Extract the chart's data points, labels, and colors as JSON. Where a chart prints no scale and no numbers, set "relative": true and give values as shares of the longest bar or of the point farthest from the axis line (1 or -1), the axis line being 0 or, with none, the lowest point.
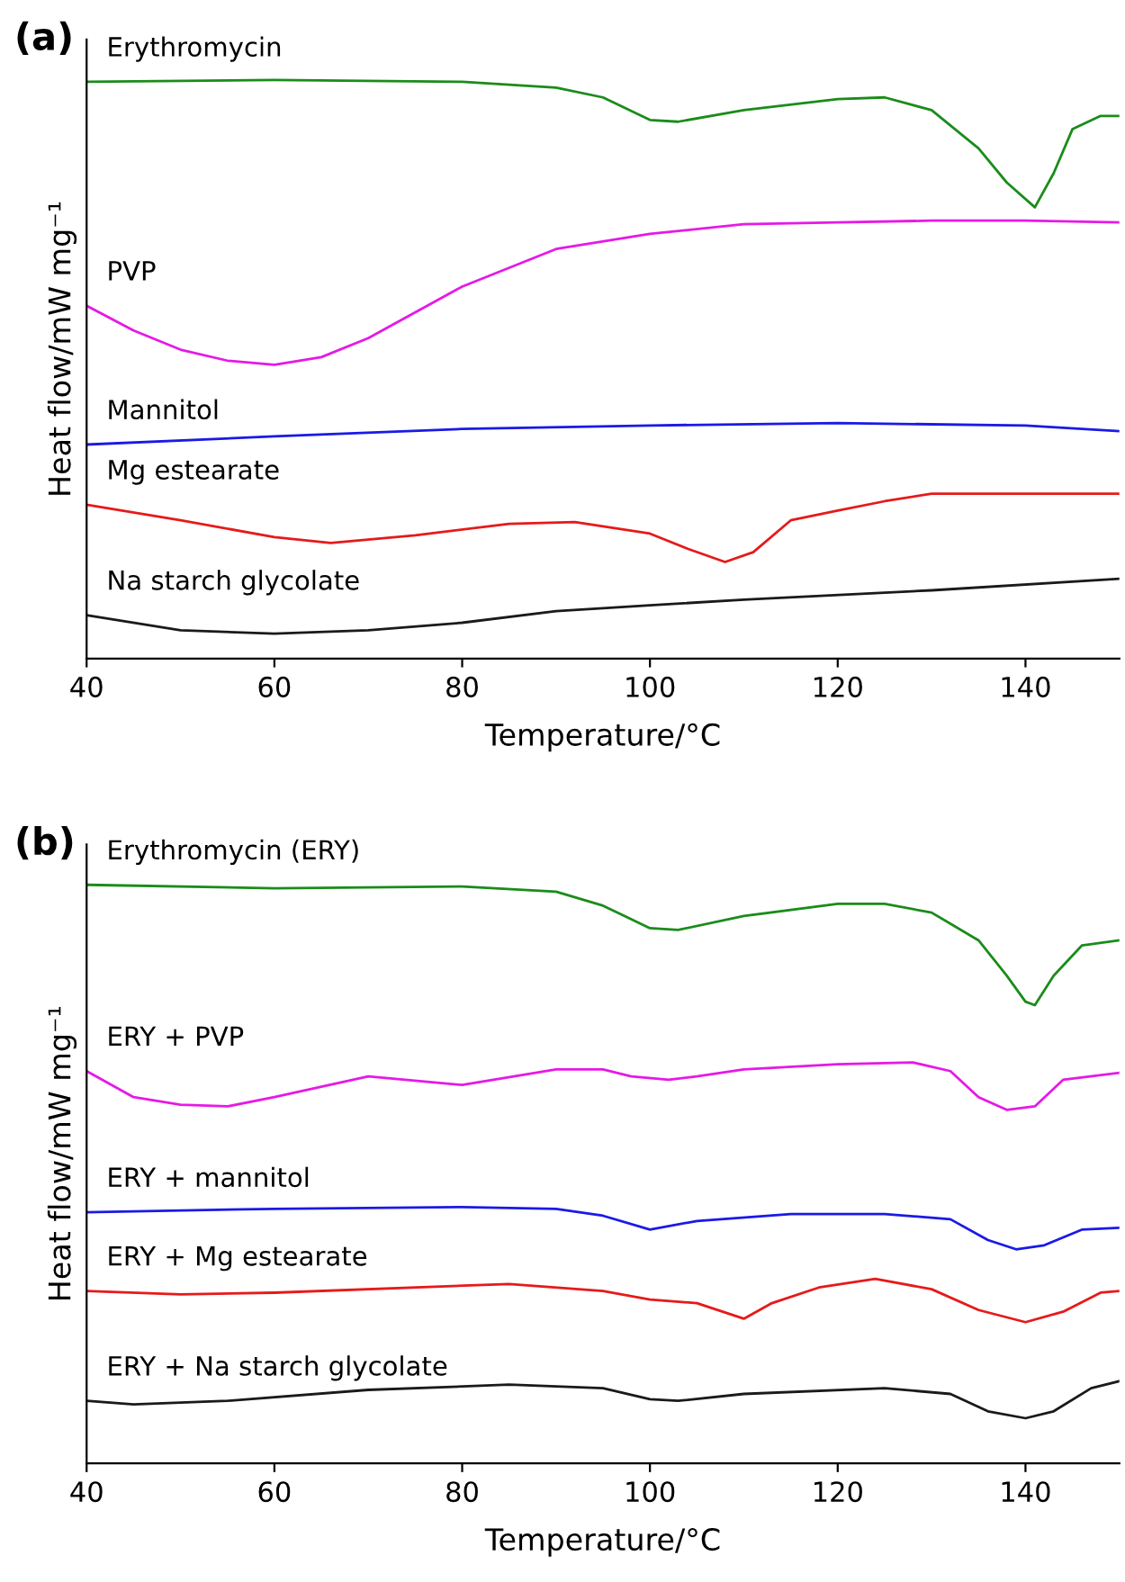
{
  "chart_data": [
    {
      "type": "line",
      "relative": true,
      "xlabel": "Temperature/°C",
      "ylabel": "Heat flow/mW mg⁻¹",
      "xlim": [
        40,
        150
      ],
      "xticks": [
        40,
        60,
        80,
        100,
        120,
        140
      ],
      "tick_labels": "x",
      "grid": false,
      "legend": false,
      "annotations": [
        "(a)"
      ],
      "series": [
        {
          "name": "Erythromycin",
          "color": "#1a8c1a",
          "x": [
            40,
            60,
            80,
            90,
            95,
            100,
            103,
            110,
            120,
            125,
            130,
            135,
            138,
            141,
            143,
            145,
            148,
            150
          ],
          "values": [
            0.997,
            1.0,
            0.997,
            0.987,
            0.97,
            0.931,
            0.928,
            0.948,
            0.967,
            0.97,
            0.948,
            0.882,
            0.823,
            0.78,
            0.839,
            0.915,
            0.938,
            0.938
          ]
        },
        {
          "name": "PVP",
          "color": "#e619e6",
          "x": [
            40,
            45,
            50,
            55,
            60,
            65,
            70,
            80,
            90,
            100,
            110,
            120,
            130,
            140,
            150
          ],
          "values": [
            0.61,
            0.567,
            0.534,
            0.515,
            0.508,
            0.521,
            0.554,
            0.643,
            0.708,
            0.734,
            0.751,
            0.754,
            0.757,
            0.757,
            0.754
          ]
        },
        {
          "name": "Mannitol",
          "color": "#1a1ae6",
          "x": [
            40,
            60,
            80,
            100,
            120,
            140,
            150
          ],
          "values": [
            0.37,
            0.384,
            0.397,
            0.403,
            0.407,
            0.403,
            0.393
          ]
        },
        {
          "name": "Mg estearate",
          "color": "#e61a1a",
          "x": [
            40,
            50,
            60,
            66,
            75,
            85,
            92,
            100,
            104,
            108,
            111,
            115,
            120,
            125,
            130,
            140,
            150
          ],
          "values": [
            0.266,
            0.239,
            0.21,
            0.2,
            0.213,
            0.233,
            0.236,
            0.216,
            0.19,
            0.167,
            0.184,
            0.239,
            0.256,
            0.272,
            0.285,
            0.285,
            0.285
          ]
        },
        {
          "name": "Na starch glycolate",
          "color": "#1a1a1a",
          "x": [
            40,
            50,
            60,
            70,
            80,
            90,
            100,
            110,
            130,
            150
          ],
          "values": [
            0.075,
            0.049,
            0.043,
            0.049,
            0.062,
            0.082,
            0.092,
            0.102,
            0.118,
            0.138
          ]
        }
      ]
    },
    {
      "type": "line",
      "relative": true,
      "xlabel": "Temperature/°C",
      "ylabel": "Heat flow/mW mg⁻¹",
      "xlim": [
        40,
        150
      ],
      "xticks": [
        40,
        60,
        80,
        100,
        120,
        140
      ],
      "tick_labels": "x",
      "grid": false,
      "legend": false,
      "annotations": [
        "(b)"
      ],
      "series": [
        {
          "name": "Erythromycin (ERY)",
          "color": "#1a8c1a",
          "x": [
            40,
            60,
            80,
            90,
            95,
            100,
            103,
            110,
            120,
            125,
            130,
            135,
            138,
            140,
            141,
            143,
            146,
            150
          ],
          "values": [
            1.0,
            0.994,
            0.997,
            0.988,
            0.964,
            0.925,
            0.922,
            0.946,
            0.967,
            0.967,
            0.952,
            0.904,
            0.843,
            0.798,
            0.792,
            0.843,
            0.895,
            0.904
          ]
        },
        {
          "name": "ERY + PVP",
          "color": "#e619e6",
          "x": [
            40,
            45,
            50,
            55,
            60,
            70,
            80,
            90,
            95,
            98,
            102,
            105,
            110,
            120,
            128,
            132,
            135,
            138,
            141,
            144,
            150
          ],
          "values": [
            0.678,
            0.633,
            0.62,
            0.617,
            0.633,
            0.669,
            0.654,
            0.681,
            0.681,
            0.669,
            0.663,
            0.669,
            0.681,
            0.69,
            0.693,
            0.678,
            0.633,
            0.611,
            0.617,
            0.663,
            0.675
          ]
        },
        {
          "name": "ERY + mannitol",
          "color": "#1a1ae6",
          "x": [
            40,
            60,
            80,
            90,
            95,
            100,
            105,
            115,
            125,
            132,
            136,
            139,
            142,
            146,
            150
          ],
          "values": [
            0.434,
            0.44,
            0.443,
            0.44,
            0.428,
            0.404,
            0.419,
            0.431,
            0.431,
            0.422,
            0.386,
            0.37,
            0.377,
            0.404,
            0.407
          ]
        },
        {
          "name": "ERY + Mg estearate",
          "color": "#e61a1a",
          "x": [
            40,
            50,
            60,
            85,
            95,
            100,
            105,
            110,
            113,
            118,
            124,
            130,
            135,
            140,
            144,
            148,
            150
          ],
          "values": [
            0.298,
            0.292,
            0.295,
            0.31,
            0.298,
            0.283,
            0.277,
            0.25,
            0.277,
            0.304,
            0.319,
            0.301,
            0.265,
            0.244,
            0.262,
            0.295,
            0.298
          ]
        },
        {
          "name": "ERY + Na starch glycolate",
          "color": "#1a1a1a",
          "x": [
            40,
            45,
            55,
            70,
            85,
            95,
            100,
            103,
            110,
            125,
            132,
            136,
            140,
            143,
            147,
            150
          ],
          "values": [
            0.108,
            0.102,
            0.108,
            0.127,
            0.136,
            0.13,
            0.111,
            0.108,
            0.12,
            0.13,
            0.12,
            0.09,
            0.078,
            0.09,
            0.13,
            0.142
          ]
        }
      ]
    }
  ]
}
